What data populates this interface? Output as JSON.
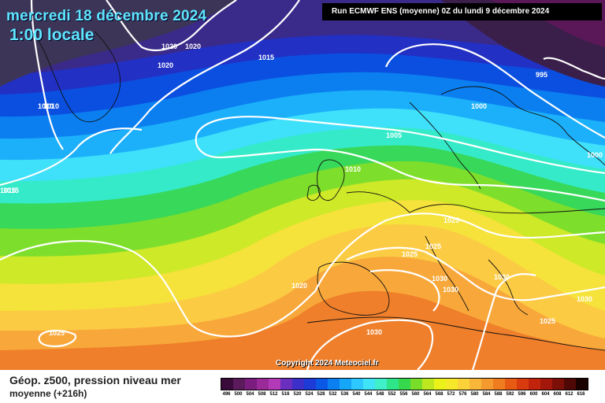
{
  "header": {
    "date": "mercredi 18 décembre 2024",
    "time": "1:00 locale",
    "run": "Run ECMWF ENS (moyenne) 0Z du lundi 9 décembre 2024"
  },
  "footer": {
    "param_title": "Géop. z500, pression niveau mer",
    "param_subtitle": "moyenne   (+216h)",
    "copyright": "Copyright 2024 Meteociel.fr"
  },
  "scale": {
    "labels": [
      "496",
      "500",
      "504",
      "508",
      "512",
      "516",
      "520",
      "524",
      "528",
      "532",
      "536",
      "540",
      "544",
      "548",
      "552",
      "556",
      "560",
      "564",
      "568",
      "572",
      "576",
      "580",
      "584",
      "588",
      "592",
      "596",
      "600",
      "604",
      "608",
      "612",
      "616"
    ],
    "colors": [
      "#3a0a3a",
      "#5b1a5c",
      "#7a1d7e",
      "#9a2a9a",
      "#b23ab7",
      "#6a2fbf",
      "#3d2fc9",
      "#1d3bd6",
      "#0b58e6",
      "#0c7ff0",
      "#16a6f8",
      "#2cc8ff",
      "#3fe4f7",
      "#3ff0c8",
      "#2ee58a",
      "#36d94b",
      "#79de2a",
      "#bde820",
      "#eaf21a",
      "#f8e82a",
      "#fbd23a",
      "#f9b73a",
      "#f59a2e",
      "#ef7d1f",
      "#e65a14",
      "#d93a0e",
      "#c2230c",
      "#a3180a",
      "#7c0f08",
      "#4f0805",
      "#1a0201"
    ]
  },
  "isobar_labels": [
    {
      "text": "1020"
    },
    {
      "text": "1020"
    },
    {
      "text": "1020"
    },
    {
      "text": "1015"
    },
    {
      "text": "1010"
    },
    {
      "text": "1015"
    },
    {
      "text": "1005"
    },
    {
      "text": "1010"
    },
    {
      "text": "1000"
    },
    {
      "text": "995"
    },
    {
      "text": "1000"
    },
    {
      "text": "1025"
    },
    {
      "text": "1025"
    },
    {
      "text": "1025"
    },
    {
      "text": "1020"
    },
    {
      "text": "1030"
    },
    {
      "text": "1030"
    },
    {
      "text": "1030"
    },
    {
      "text": "1030"
    },
    {
      "text": "1025"
    },
    {
      "text": "1030"
    },
    {
      "text": "1025"
    },
    {
      "text": "1010"
    },
    {
      "text": "1015"
    }
  ]
}
